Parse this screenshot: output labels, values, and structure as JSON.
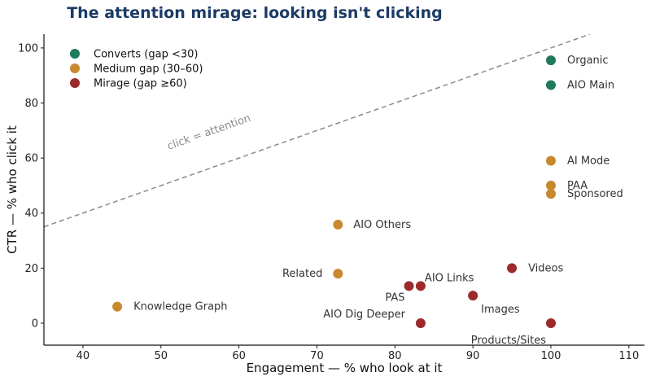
{
  "chart_data": {
    "type": "scatter",
    "title": "The attention mirage: looking isn't clicking",
    "xlabel": "Engagement — % who look at it",
    "ylabel": "CTR — % who click it",
    "xlim": [
      35,
      112
    ],
    "ylim": [
      -8,
      105
    ],
    "xticks": [
      40,
      50,
      60,
      70,
      80,
      90,
      100,
      110
    ],
    "yticks": [
      0,
      20,
      40,
      60,
      80,
      100
    ],
    "grid": false,
    "legend_position": "top-left",
    "reference_line": {
      "label": "click = attention",
      "x": [
        35,
        105
      ],
      "y": [
        35,
        105
      ]
    },
    "series": [
      {
        "name": "Converts (gap <30)",
        "color": "#1e7a5a",
        "points": [
          {
            "label": "Organic",
            "x": 100,
            "y": 95.5
          },
          {
            "label": "AIO Main",
            "x": 100,
            "y": 86.5
          }
        ]
      },
      {
        "name": "Medium gap (30–60)",
        "color": "#c8892e",
        "points": [
          {
            "label": "AI Mode",
            "x": 100,
            "y": 59
          },
          {
            "label": "PAA",
            "x": 100,
            "y": 50
          },
          {
            "label": "Sponsored",
            "x": 100,
            "y": 47
          },
          {
            "label": "AIO Others",
            "x": 72.7,
            "y": 35.8
          },
          {
            "label": "Related",
            "x": 72.7,
            "y": 18
          },
          {
            "label": "Knowledge Graph",
            "x": 44.4,
            "y": 6
          }
        ]
      },
      {
        "name": "Mirage (gap ≥60)",
        "color": "#9c2a2a",
        "points": [
          {
            "label": "Videos",
            "x": 95,
            "y": 20
          },
          {
            "label": "AIO Links",
            "x": 83.3,
            "y": 13.5
          },
          {
            "label": "PAS",
            "x": 81.8,
            "y": 13.5
          },
          {
            "label": "Images",
            "x": 90,
            "y": 10
          },
          {
            "label": "AIO Dig Deeper",
            "x": 83.3,
            "y": 0
          },
          {
            "label": "Products/Sites",
            "x": 100,
            "y": 0
          }
        ]
      }
    ]
  },
  "colors": {
    "title": "#1b3a66",
    "axis": "#111111",
    "reference_line": "#8a8a8a"
  }
}
